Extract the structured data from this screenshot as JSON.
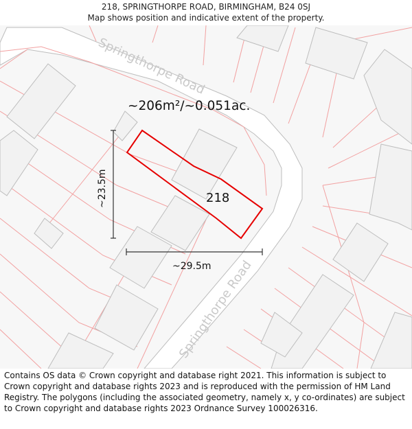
{
  "header": {
    "title": "218, SPRINGTHORPE ROAD, BIRMINGHAM, B24 0SJ",
    "subtitle": "Map shows position and indicative extent of the property."
  },
  "map": {
    "road_label_north": "Springthorpe Road",
    "road_label_south": "Springthorpe Road",
    "area_label": "~206m²/~0.051ac.",
    "plot_number": "218",
    "height_label": "~23.5m",
    "width_label": "~29.5m",
    "colors": {
      "boundary": "#e60000",
      "parcel": "#f2a0a0",
      "building_fill": "#f2f2f2",
      "building_stroke": "#bdbdbd",
      "road_fill": "#ffffff",
      "road_edge": "#bdbdbd",
      "background": "#f7f7f7"
    }
  },
  "footer": {
    "attribution": "Contains OS data © Crown copyright and database right 2021. This information is subject to Crown copyright and database rights 2023 and is reproduced with the permission of HM Land Registry. The polygons (including the associated geometry, namely x, y co-ordinates) are subject to Crown copyright and database rights 2023 Ordnance Survey 100026316."
  }
}
